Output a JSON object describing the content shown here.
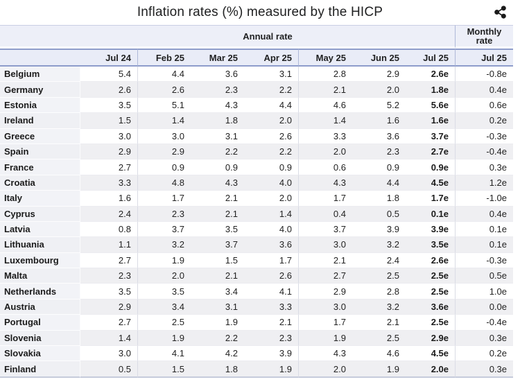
{
  "header": {
    "share_icon": "share-icon"
  },
  "colors": {
    "header_bg": "#EDEFF8",
    "header_border_blue": "#8E9CCB",
    "row_stripe": "#EFEFF2",
    "country_col_bg": "#F2F3F7",
    "bottom_border": "#C6CBDB",
    "text": "#202122"
  },
  "chart_data": {
    "type": "table",
    "title": "Inflation rates (%) measured by the HICP",
    "column_groups": [
      "Annual rate",
      "Monthly rate"
    ],
    "columns": [
      "Jul 24",
      "Feb 25",
      "Mar 25",
      "Apr 25",
      "May 25",
      "Jun 25",
      "Jul 25",
      "Jul 25"
    ],
    "unit": "%",
    "rows": [
      {
        "country": "Belgium",
        "values": [
          "5.4",
          "4.4",
          "3.6",
          "3.1",
          "2.8",
          "2.9",
          "2.6e",
          "-0.8e"
        ]
      },
      {
        "country": "Germany",
        "values": [
          "2.6",
          "2.6",
          "2.3",
          "2.2",
          "2.1",
          "2.0",
          "1.8e",
          "0.4e"
        ]
      },
      {
        "country": "Estonia",
        "values": [
          "3.5",
          "5.1",
          "4.3",
          "4.4",
          "4.6",
          "5.2",
          "5.6e",
          "0.6e"
        ]
      },
      {
        "country": "Ireland",
        "values": [
          "1.5",
          "1.4",
          "1.8",
          "2.0",
          "1.4",
          "1.6",
          "1.6e",
          "0.2e"
        ]
      },
      {
        "country": "Greece",
        "values": [
          "3.0",
          "3.0",
          "3.1",
          "2.6",
          "3.3",
          "3.6",
          "3.7e",
          "-0.3e"
        ]
      },
      {
        "country": "Spain",
        "values": [
          "2.9",
          "2.9",
          "2.2",
          "2.2",
          "2.0",
          "2.3",
          "2.7e",
          "-0.4e"
        ]
      },
      {
        "country": "France",
        "values": [
          "2.7",
          "0.9",
          "0.9",
          "0.9",
          "0.6",
          "0.9",
          "0.9e",
          "0.3e"
        ]
      },
      {
        "country": "Croatia",
        "values": [
          "3.3",
          "4.8",
          "4.3",
          "4.0",
          "4.3",
          "4.4",
          "4.5e",
          "1.2e"
        ]
      },
      {
        "country": "Italy",
        "values": [
          "1.6",
          "1.7",
          "2.1",
          "2.0",
          "1.7",
          "1.8",
          "1.7e",
          "-1.0e"
        ]
      },
      {
        "country": "Cyprus",
        "values": [
          "2.4",
          "2.3",
          "2.1",
          "1.4",
          "0.4",
          "0.5",
          "0.1e",
          "0.4e"
        ]
      },
      {
        "country": "Latvia",
        "values": [
          "0.8",
          "3.7",
          "3.5",
          "4.0",
          "3.7",
          "3.9",
          "3.9e",
          "0.1e"
        ]
      },
      {
        "country": "Lithuania",
        "values": [
          "1.1",
          "3.2",
          "3.7",
          "3.6",
          "3.0",
          "3.2",
          "3.5e",
          "0.1e"
        ]
      },
      {
        "country": "Luxembourg",
        "values": [
          "2.7",
          "1.9",
          "1.5",
          "1.7",
          "2.1",
          "2.4",
          "2.6e",
          "-0.3e"
        ]
      },
      {
        "country": "Malta",
        "values": [
          "2.3",
          "2.0",
          "2.1",
          "2.6",
          "2.7",
          "2.5",
          "2.5e",
          "0.5e"
        ]
      },
      {
        "country": "Netherlands",
        "values": [
          "3.5",
          "3.5",
          "3.4",
          "4.1",
          "2.9",
          "2.8",
          "2.5e",
          "1.0e"
        ]
      },
      {
        "country": "Austria",
        "values": [
          "2.9",
          "3.4",
          "3.1",
          "3.3",
          "3.0",
          "3.2",
          "3.6e",
          "0.0e"
        ]
      },
      {
        "country": "Portugal",
        "values": [
          "2.7",
          "2.5",
          "1.9",
          "2.1",
          "1.7",
          "2.1",
          "2.5e",
          "-0.4e"
        ]
      },
      {
        "country": "Slovenia",
        "values": [
          "1.4",
          "1.9",
          "2.2",
          "2.3",
          "1.9",
          "2.5",
          "2.9e",
          "0.3e"
        ]
      },
      {
        "country": "Slovakia",
        "values": [
          "3.0",
          "4.1",
          "4.2",
          "3.9",
          "4.3",
          "4.6",
          "4.5e",
          "0.2e"
        ]
      },
      {
        "country": "Finland",
        "values": [
          "0.5",
          "1.5",
          "1.8",
          "1.9",
          "2.0",
          "1.9",
          "2.0e",
          "0.3e"
        ]
      }
    ]
  }
}
